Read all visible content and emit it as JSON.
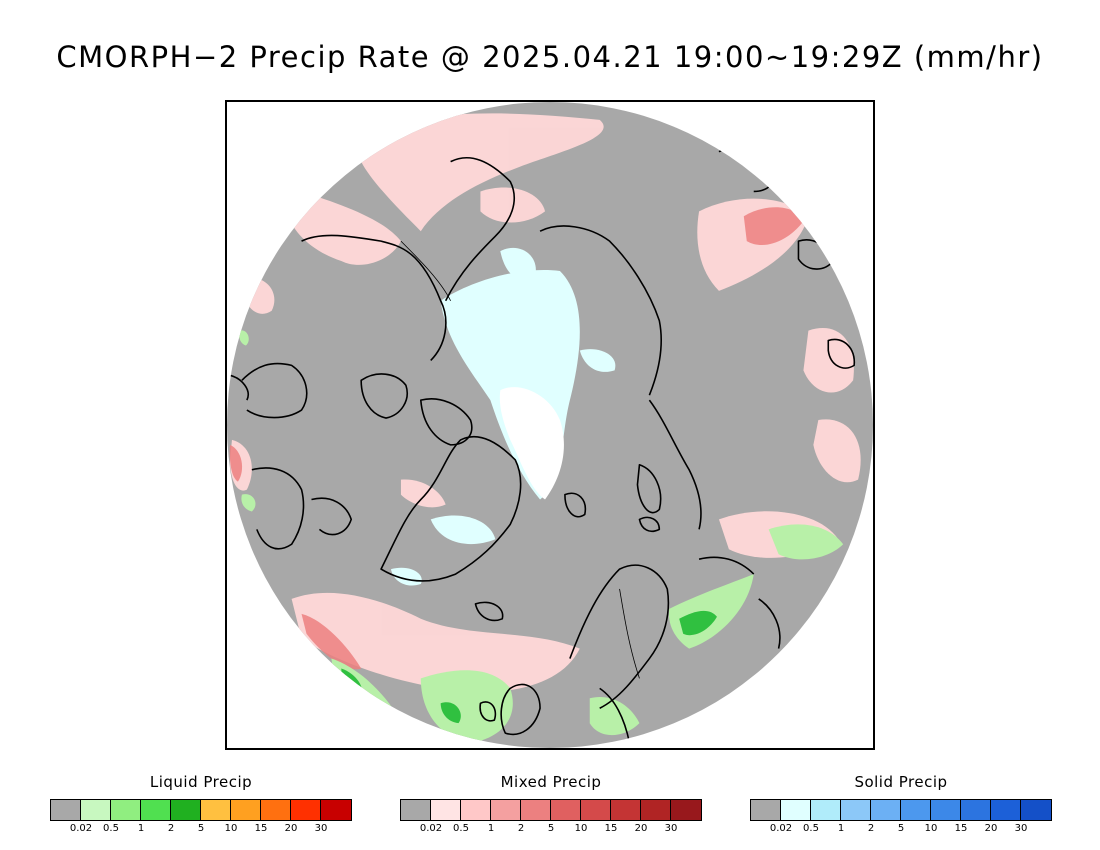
{
  "title": "CMORPH−2 Precip Rate @ 2025.04.21 19:00∼19:29Z (mm/hr)",
  "map": {
    "projection": "north polar stereographic",
    "background_color": "#a8a8a8",
    "outside_color": "#ffffff",
    "coastline_color": "#000000"
  },
  "legends": [
    {
      "title": "Liquid Precip",
      "colors": [
        "#a8a8a8",
        "#c8f8c0",
        "#90ee80",
        "#50e050",
        "#20b020",
        "#ffc040",
        "#ffa020",
        "#ff7010",
        "#ff3000",
        "#c80000"
      ],
      "ticks": [
        "0.02",
        "0.5",
        "1",
        "2",
        "5",
        "10",
        "15",
        "20",
        "30"
      ]
    },
    {
      "title": "Mixed Precip",
      "colors": [
        "#a8a8a8",
        "#ffe4e4",
        "#ffc8c8",
        "#f4a0a0",
        "#ec8080",
        "#e06060",
        "#d44a4a",
        "#c43434",
        "#b02424",
        "#98181c"
      ],
      "ticks": [
        "0.02",
        "0.5",
        "1",
        "2",
        "5",
        "10",
        "15",
        "20",
        "30"
      ]
    },
    {
      "title": "Solid Precip",
      "colors": [
        "#a8a8a8",
        "#e0ffff",
        "#b0ecfa",
        "#8cc8f8",
        "#6cb0f4",
        "#4c98ee",
        "#3c88e8",
        "#2c74e0",
        "#1c60d8",
        "#1450c8"
      ],
      "ticks": [
        "0.02",
        "0.5",
        "1",
        "2",
        "5",
        "10",
        "15",
        "20",
        "30"
      ]
    }
  ]
}
